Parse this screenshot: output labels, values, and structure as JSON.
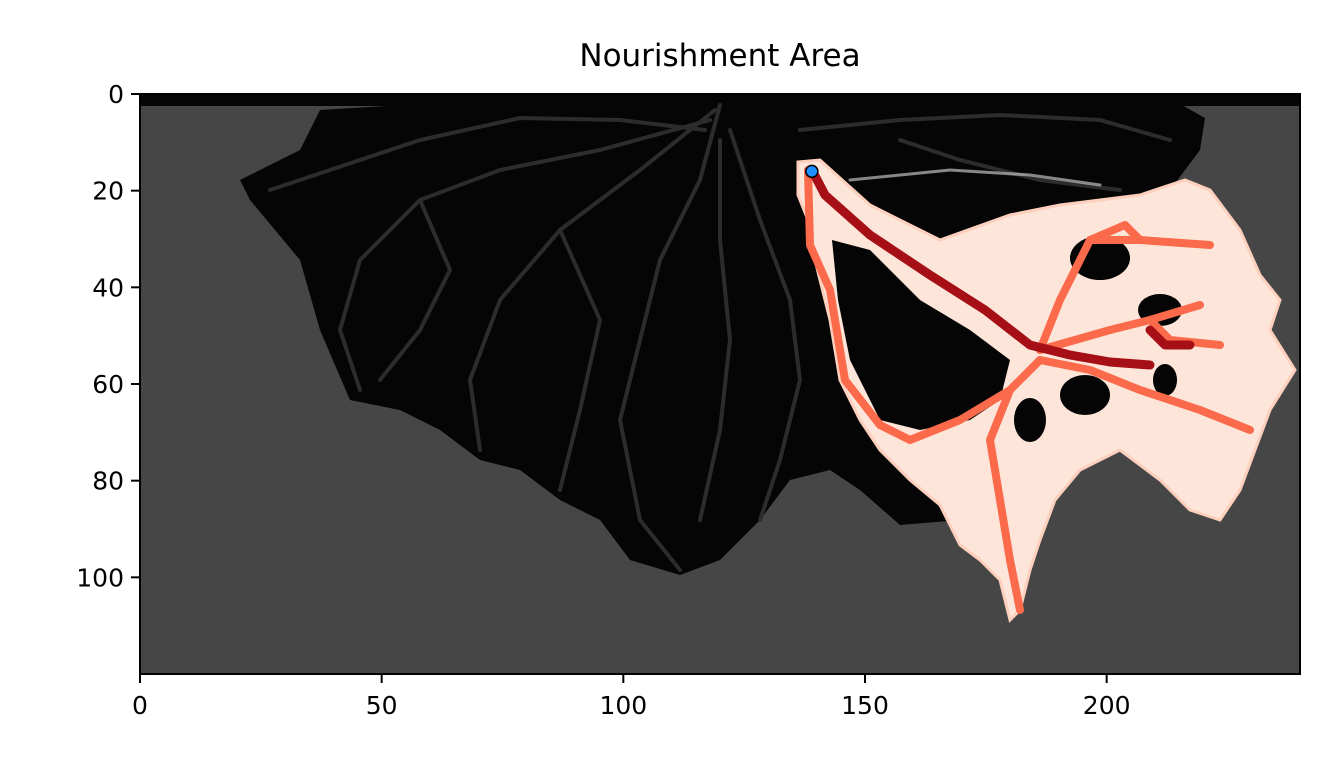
{
  "chart_data": {
    "type": "heatmap",
    "title": "Nourishment Area",
    "xlim": [
      0,
      240
    ],
    "ylim": [
      120,
      0
    ],
    "y_axis_inverted": true,
    "x_ticks": [
      0,
      50,
      100,
      150,
      200
    ],
    "y_ticks": [
      0,
      20,
      40,
      60,
      80,
      100
    ],
    "grid": false,
    "colormap": "Reds",
    "background_colormap": "Greys",
    "colors": {
      "background": "#464646",
      "delta_land": "#050505",
      "channel": "#2c2c2c",
      "heat_low": "#fee5d9",
      "heat_mid": "#fb6a4a",
      "heat_high": "#a50f15",
      "marker_fill": "#1e90ff",
      "marker_edge": "#000000"
    },
    "marker": {
      "x": 139,
      "y": 16
    },
    "main_channel": [
      [
        139,
        16
      ],
      [
        141,
        22
      ],
      [
        150,
        32
      ],
      [
        162,
        40
      ],
      [
        175,
        48
      ],
      [
        187,
        55
      ],
      [
        198,
        58
      ],
      [
        210,
        60
      ]
    ]
  }
}
